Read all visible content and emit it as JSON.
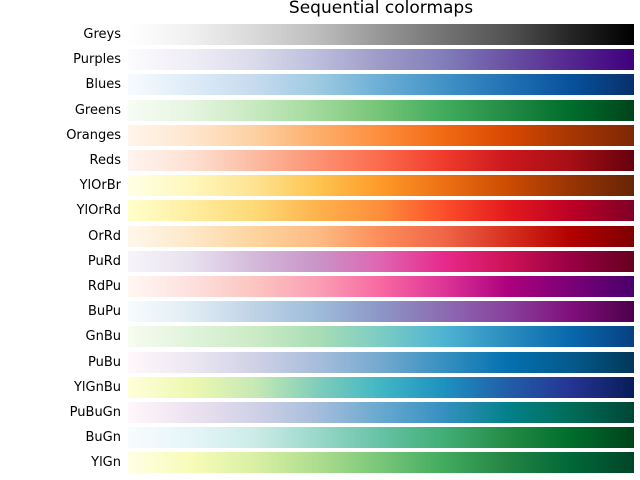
{
  "chart_data": {
    "type": "heatmap",
    "title": "Sequential colormaps",
    "xlabel": "",
    "ylabel": "",
    "grid": false,
    "legend": "none",
    "colormaps": [
      {
        "name": "Greys",
        "stops": [
          "#ffffff",
          "#f0f0f0",
          "#d9d9d9",
          "#bdbdbd",
          "#969696",
          "#737373",
          "#525252",
          "#252525",
          "#000000"
        ]
      },
      {
        "name": "Purples",
        "stops": [
          "#fcfbfd",
          "#efedf5",
          "#dadaeb",
          "#bcbddc",
          "#9e9ac8",
          "#807dba",
          "#6a51a3",
          "#54278f",
          "#3f007d"
        ]
      },
      {
        "name": "Blues",
        "stops": [
          "#f7fbff",
          "#deebf7",
          "#c6dbef",
          "#9ecae1",
          "#6baed6",
          "#4292c6",
          "#2171b5",
          "#08519c",
          "#08306b"
        ]
      },
      {
        "name": "Greens",
        "stops": [
          "#f7fcf5",
          "#e5f5e0",
          "#c7e9c0",
          "#a1d99b",
          "#74c476",
          "#41ab5d",
          "#238b45",
          "#006d2c",
          "#00441b"
        ]
      },
      {
        "name": "Oranges",
        "stops": [
          "#fff5eb",
          "#fee6ce",
          "#fdd0a2",
          "#fdae6b",
          "#fd8d3c",
          "#f16913",
          "#d94801",
          "#a63603",
          "#7f2704"
        ]
      },
      {
        "name": "Reds",
        "stops": [
          "#fff5f0",
          "#fee0d2",
          "#fcbba1",
          "#fc9272",
          "#fb6a4a",
          "#ef3b2c",
          "#cb181d",
          "#a50f15",
          "#67000d"
        ]
      },
      {
        "name": "YlOrBr",
        "stops": [
          "#ffffe5",
          "#fff7bc",
          "#fee391",
          "#fec44f",
          "#fe9929",
          "#ec7014",
          "#cc4c02",
          "#993404",
          "#662506"
        ]
      },
      {
        "name": "YlOrRd",
        "stops": [
          "#ffffcc",
          "#ffeda0",
          "#fed976",
          "#feb24c",
          "#fd8d3c",
          "#fc4e2a",
          "#e31a1c",
          "#bd0026",
          "#800026"
        ]
      },
      {
        "name": "OrRd",
        "stops": [
          "#fff7ec",
          "#fee8c8",
          "#fdd49e",
          "#fdbb84",
          "#fc8d59",
          "#ef6548",
          "#d7301f",
          "#b30000",
          "#7f0000"
        ]
      },
      {
        "name": "PuRd",
        "stops": [
          "#f7f4f9",
          "#e7e1ef",
          "#d4b9da",
          "#c994c7",
          "#df65b0",
          "#e7298a",
          "#ce1256",
          "#980043",
          "#67001f"
        ]
      },
      {
        "name": "RdPu",
        "stops": [
          "#fff7f3",
          "#fde0dd",
          "#fcc5c0",
          "#fa9fb5",
          "#f768a1",
          "#dd3497",
          "#ae017e",
          "#7a0177",
          "#49006a"
        ]
      },
      {
        "name": "BuPu",
        "stops": [
          "#f7fcfd",
          "#e0ecf4",
          "#bfd3e6",
          "#9ebcda",
          "#8c96c6",
          "#8c6bb1",
          "#88419d",
          "#810f7c",
          "#4d004b"
        ]
      },
      {
        "name": "GnBu",
        "stops": [
          "#f7fcf0",
          "#e0f3db",
          "#ccebc5",
          "#a8ddb5",
          "#7bccc4",
          "#4eb3d3",
          "#2b8cbe",
          "#0868ac",
          "#084081"
        ]
      },
      {
        "name": "PuBu",
        "stops": [
          "#fff7fb",
          "#ece7f2",
          "#d0d1e6",
          "#a6bddb",
          "#74a9cf",
          "#3690c0",
          "#0570b0",
          "#045a8d",
          "#023858"
        ]
      },
      {
        "name": "YlGnBu",
        "stops": [
          "#ffffd9",
          "#edf8b1",
          "#c7e9b4",
          "#7fcdbb",
          "#41b6c4",
          "#1d91c0",
          "#225ea8",
          "#253494",
          "#081d58"
        ]
      },
      {
        "name": "PuBuGn",
        "stops": [
          "#fff7fb",
          "#ece2f0",
          "#d0d1e6",
          "#a6bddb",
          "#67a9cf",
          "#3690c0",
          "#02818a",
          "#016c59",
          "#014636"
        ]
      },
      {
        "name": "BuGn",
        "stops": [
          "#f7fcfd",
          "#e5f5f9",
          "#ccece6",
          "#99d8c9",
          "#66c2a4",
          "#41ae76",
          "#238b45",
          "#006d2c",
          "#00441b"
        ]
      },
      {
        "name": "YlGn",
        "stops": [
          "#ffffe5",
          "#f7fcb9",
          "#d9f0a3",
          "#addd8e",
          "#78c679",
          "#41ab5d",
          "#238443",
          "#006837",
          "#004529"
        ]
      }
    ]
  }
}
